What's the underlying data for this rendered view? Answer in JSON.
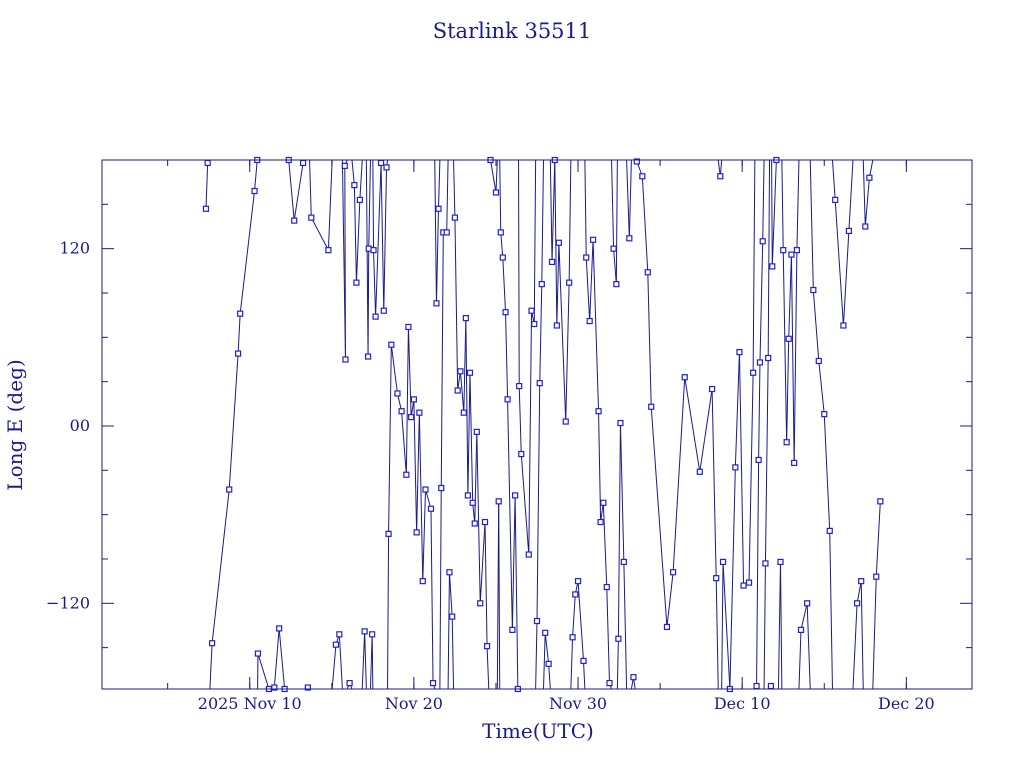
{
  "chart_data": {
    "type": "scatter",
    "title": "Starlink 35511",
    "xlabel": "Time(UTC)",
    "ylabel": "Long E (deg)",
    "x_range": [
      "2025-11-01",
      "2025-12-24"
    ],
    "ylim": [
      -178,
      180
    ],
    "x_ticks": [
      {
        "date": "2025-11-10",
        "label": "2025 Nov 10"
      },
      {
        "date": "2025-11-20",
        "label": "Nov 20"
      },
      {
        "date": "2025-11-30",
        "label": "Nov 30"
      },
      {
        "date": "2025-12-10",
        "label": "Dec 10"
      },
      {
        "date": "2025-12-20",
        "label": "Dec 20"
      }
    ],
    "y_ticks": [
      {
        "value": 120,
        "label": "120"
      },
      {
        "value": 0,
        "label": "00"
      },
      {
        "value": -120,
        "label": "−120"
      }
    ],
    "grid": false,
    "line_color": "#1a1a8c",
    "marker_color": "#2020d0",
    "points": [
      [
        "2025-11-07T08:00",
        147
      ],
      [
        "2025-11-07T10:30",
        178
      ],
      [
        "2025-11-07T17:00",
        -147
      ],
      [
        "2025-11-08T18:00",
        -43
      ],
      [
        "2025-11-09T07:00",
        49
      ],
      [
        "2025-11-09T10:00",
        76
      ],
      [
        "2025-11-10T07:00",
        159
      ],
      [
        "2025-11-10T11:00",
        180
      ],
      [
        "2025-11-10T12:00",
        -154
      ],
      [
        "2025-11-11T04:00",
        -178
      ],
      [
        "2025-11-11T12:00",
        -177
      ],
      [
        "2025-11-11T19:00",
        -137
      ],
      [
        "2025-11-12T03:00",
        -178
      ],
      [
        "2025-11-12T09:00",
        180
      ],
      [
        "2025-11-12T17:00",
        139
      ],
      [
        "2025-11-13T06:00",
        178
      ],
      [
        "2025-11-13T13:00",
        -177
      ],
      [
        "2025-11-13T18:00",
        141
      ],
      [
        "2025-11-14T19:00",
        119
      ],
      [
        "2025-11-15T06:00",
        -148
      ],
      [
        "2025-11-15T11:00",
        -141
      ],
      [
        "2025-11-15T20:00",
        45
      ],
      [
        "2025-11-15T19:00",
        176
      ],
      [
        "2025-11-16T02:00",
        -174
      ],
      [
        "2025-11-16T09:00",
        163
      ],
      [
        "2025-11-16T12:00",
        97
      ],
      [
        "2025-11-16T17:00",
        153
      ],
      [
        "2025-11-17T00:00",
        -139
      ],
      [
        "2025-11-17T05:00",
        47
      ],
      [
        "2025-11-17T06:00",
        120
      ],
      [
        "2025-11-17T11:00",
        -141
      ],
      [
        "2025-11-17T13:00",
        119
      ],
      [
        "2025-11-17T16:00",
        74
      ],
      [
        "2025-11-18T00:00",
        178
      ],
      [
        "2025-11-18T04:00",
        78
      ],
      [
        "2025-11-18T08:00",
        175
      ],
      [
        "2025-11-18T11:00",
        -73
      ],
      [
        "2025-11-18T15:00",
        55
      ],
      [
        "2025-11-19T00:00",
        22
      ],
      [
        "2025-11-19T06:00",
        10
      ],
      [
        "2025-11-19T13:00",
        -33
      ],
      [
        "2025-11-19T16:00",
        67
      ],
      [
        "2025-11-19T20:00",
        6
      ],
      [
        "2025-11-20T00:00",
        18
      ],
      [
        "2025-11-20T04:00",
        -72
      ],
      [
        "2025-11-20T08:00",
        9
      ],
      [
        "2025-11-20T13:00",
        -105
      ],
      [
        "2025-11-20T17:00",
        -43
      ],
      [
        "2025-11-21T01:00",
        -56
      ],
      [
        "2025-11-21T04:00",
        -174
      ],
      [
        "2025-11-21T09:00",
        83
      ],
      [
        "2025-11-21T12:00",
        147
      ],
      [
        "2025-11-21T16:00",
        -42
      ],
      [
        "2025-11-21T19:00",
        131
      ],
      [
        "2025-11-22T00:00",
        131
      ],
      [
        "2025-11-22T04:00",
        -99
      ],
      [
        "2025-11-22T08:00",
        -129
      ],
      [
        "2025-11-22T12:00",
        141
      ],
      [
        "2025-11-22T16:00",
        24
      ],
      [
        "2025-11-22T20:00",
        37
      ],
      [
        "2025-11-23T01:00",
        9
      ],
      [
        "2025-11-23T04:00",
        73
      ],
      [
        "2025-11-23T07:00",
        -47
      ],
      [
        "2025-11-23T10:00",
        36
      ],
      [
        "2025-11-23T14:00",
        -52
      ],
      [
        "2025-11-23T17:00",
        -66
      ],
      [
        "2025-11-23T20:00",
        -4
      ],
      [
        "2025-11-24T01:00",
        -120
      ],
      [
        "2025-11-24T08:00",
        -65
      ],
      [
        "2025-11-24T11:00",
        -149
      ],
      [
        "2025-11-24T16:00",
        180
      ],
      [
        "2025-11-25T00:00",
        158
      ],
      [
        "2025-11-25T04:00",
        -51
      ],
      [
        "2025-11-25T07:00",
        131
      ],
      [
        "2025-11-25T10:00",
        114
      ],
      [
        "2025-11-25T14:00",
        77
      ],
      [
        "2025-11-25T17:00",
        18
      ],
      [
        "2025-11-26T00:00",
        -138
      ],
      [
        "2025-11-26T04:00",
        -47
      ],
      [
        "2025-11-26T08:00",
        -178
      ],
      [
        "2025-11-26T10:00",
        27
      ],
      [
        "2025-11-26T13:00",
        -19
      ],
      [
        "2025-11-27T00:00",
        -87
      ],
      [
        "2025-11-27T04:00",
        78
      ],
      [
        "2025-11-27T08:00",
        69
      ],
      [
        "2025-11-27T12:00",
        -132
      ],
      [
        "2025-11-27T16:00",
        29
      ],
      [
        "2025-11-27T19:00",
        96
      ],
      [
        "2025-11-28T00:00",
        -140
      ],
      [
        "2025-11-28T05:00",
        -161
      ],
      [
        "2025-11-28T10:00",
        111
      ],
      [
        "2025-11-28T14:00",
        180
      ],
      [
        "2025-11-28T17:00",
        68
      ],
      [
        "2025-11-28T20:00",
        124
      ],
      [
        "2025-11-29T06:00",
        3
      ],
      [
        "2025-11-29T11:00",
        97
      ],
      [
        "2025-11-29T16:00",
        -143
      ],
      [
        "2025-11-29T20:00",
        -114
      ],
      [
        "2025-11-30T00:00",
        -105
      ],
      [
        "2025-11-30T08:00",
        -159
      ],
      [
        "2025-11-30T12:00",
        114
      ],
      [
        "2025-11-30T17:00",
        71
      ],
      [
        "2025-11-30T22:00",
        126
      ],
      [
        "2025-12-01T06:00",
        10
      ],
      [
        "2025-12-01T09:00",
        -65
      ],
      [
        "2025-12-01T13:00",
        -52
      ],
      [
        "2025-12-01T18:00",
        -109
      ],
      [
        "2025-12-01T22:00",
        -174
      ],
      [
        "2025-12-02T04:00",
        120
      ],
      [
        "2025-12-02T08:00",
        96
      ],
      [
        "2025-12-02T11:00",
        -144
      ],
      [
        "2025-12-02T14:00",
        2
      ],
      [
        "2025-12-02T19:00",
        -92
      ],
      [
        "2025-12-03T03:00",
        127
      ],
      [
        "2025-12-03T09:00",
        -170
      ],
      [
        "2025-12-03T14:00",
        179
      ],
      [
        "2025-12-03T22:00",
        169
      ],
      [
        "2025-12-04T06:00",
        104
      ],
      [
        "2025-12-04T11:00",
        13
      ],
      [
        "2025-12-05T10:00",
        -136
      ],
      [
        "2025-12-05T19:00",
        -99
      ],
      [
        "2025-12-06T12:00",
        33
      ],
      [
        "2025-12-07T10:00",
        -31
      ],
      [
        "2025-12-08T04:00",
        25
      ],
      [
        "2025-12-08T10:00",
        -103
      ],
      [
        "2025-12-08T16:00",
        169
      ],
      [
        "2025-12-08T20:00",
        -92
      ],
      [
        "2025-12-09T06:00",
        -178
      ],
      [
        "2025-12-09T14:00",
        -28
      ],
      [
        "2025-12-09T20:00",
        50
      ],
      [
        "2025-12-10T02:00",
        -108
      ],
      [
        "2025-12-10T10:00",
        -106
      ],
      [
        "2025-12-10T16:00",
        36
      ],
      [
        "2025-12-10T21:00",
        -176
      ],
      [
        "2025-12-11T00:00",
        -23
      ],
      [
        "2025-12-11T02:00",
        43
      ],
      [
        "2025-12-11T06:00",
        125
      ],
      [
        "2025-12-11T10:00",
        -93
      ],
      [
        "2025-12-11T14:00",
        46
      ],
      [
        "2025-12-11T18:00",
        -176
      ],
      [
        "2025-12-11T20:00",
        108
      ],
      [
        "2025-12-12T02:00",
        180
      ],
      [
        "2025-12-12T08:00",
        -92
      ],
      [
        "2025-12-12T12:00",
        119
      ],
      [
        "2025-12-12T17:00",
        -11
      ],
      [
        "2025-12-12T20:00",
        59
      ],
      [
        "2025-12-13T00:00",
        116
      ],
      [
        "2025-12-13T04:00",
        -25
      ],
      [
        "2025-12-13T08:00",
        119
      ],
      [
        "2025-12-13T14:00",
        -138
      ],
      [
        "2025-12-13T23:00",
        -120
      ],
      [
        "2025-12-14T08:00",
        92
      ],
      [
        "2025-12-14T16:00",
        44
      ],
      [
        "2025-12-15T00:00",
        8
      ],
      [
        "2025-12-15T08:00",
        -71
      ],
      [
        "2025-12-15T16:00",
        153
      ],
      [
        "2025-12-16T04:00",
        68
      ],
      [
        "2025-12-16T12:00",
        132
      ],
      [
        "2025-12-17T00:00",
        -120
      ],
      [
        "2025-12-17T06:00",
        -105
      ],
      [
        "2025-12-17T12:00",
        135
      ],
      [
        "2025-12-17T18:00",
        168
      ],
      [
        "2025-12-18T04:00",
        -102
      ],
      [
        "2025-12-18T10:00",
        -51
      ]
    ]
  }
}
